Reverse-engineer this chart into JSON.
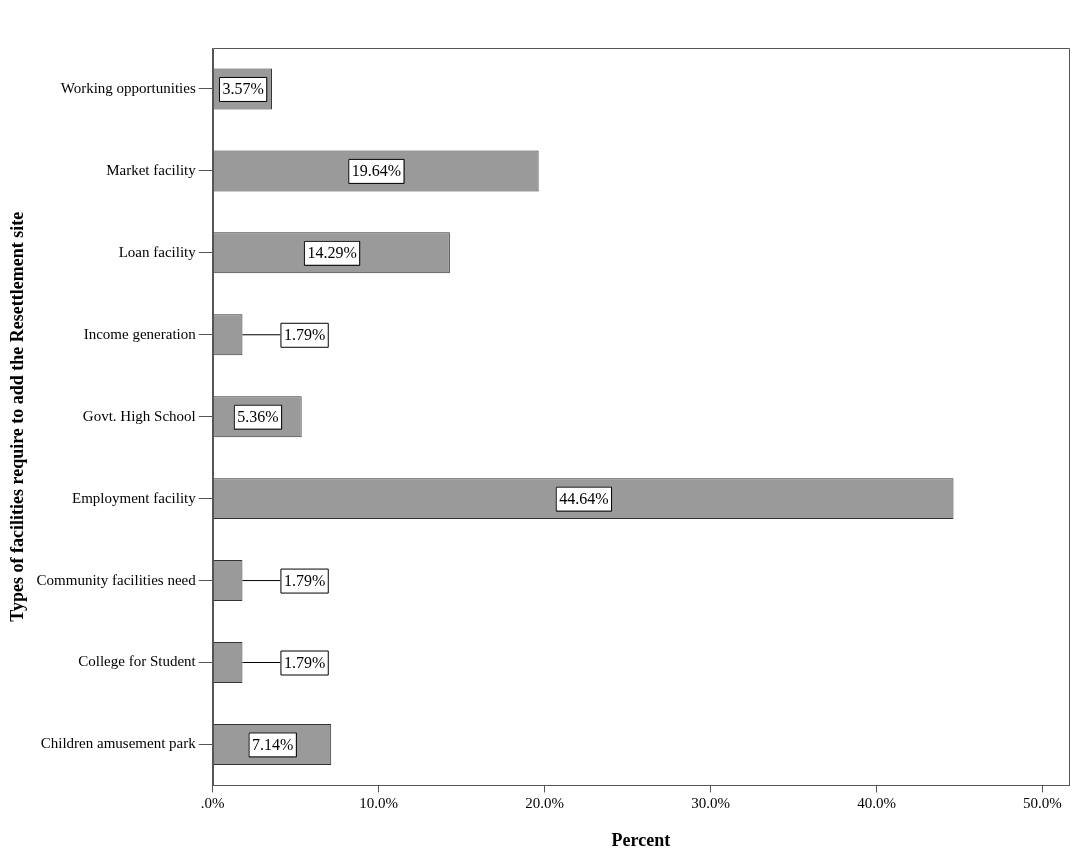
{
  "chart_data": {
    "type": "bar",
    "orientation": "horizontal",
    "xlabel": "Percent",
    "ylabel": "Types of facilities require to add the Resettlement site",
    "categories": [
      "Working opportunities",
      "Market facility",
      "Loan facility",
      "Income generation",
      "Govt. High School",
      "Employment facility",
      "Community facilities need",
      "College for Student",
      "Children amusement park"
    ],
    "values": [
      3.57,
      19.64,
      14.29,
      1.79,
      5.36,
      44.64,
      1.79,
      1.79,
      7.14
    ],
    "value_labels": [
      "3.57%",
      "19.64%",
      "14.29%",
      "1.79%",
      "5.36%",
      "44.64%",
      "1.79%",
      "1.79%",
      "7.14%"
    ],
    "color": "#9a9a9a",
    "xlim": [
      0,
      51.6
    ],
    "xticks": [
      {
        "value": 0,
        "label": ".0%"
      },
      {
        "value": 10,
        "label": "10.0%"
      },
      {
        "value": 20,
        "label": "20.0%"
      },
      {
        "value": 30,
        "label": "30.0%"
      },
      {
        "value": 40,
        "label": "40.0%"
      },
      {
        "value": 50,
        "label": "50.0%"
      }
    ],
    "grid": false,
    "legend": false
  }
}
